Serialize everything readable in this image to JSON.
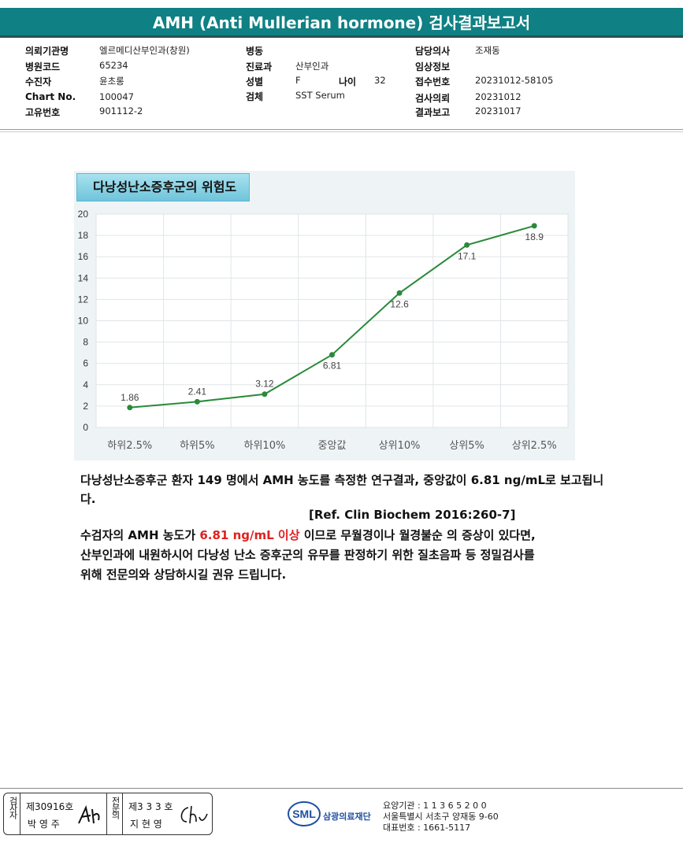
{
  "header": {
    "title": "AMH (Anti Mullerian hormone) 검사결과보고서"
  },
  "info": {
    "col1": [
      {
        "label": "의뢰기관명",
        "value": "엘르메디산부인과(창원)"
      },
      {
        "label": "병원코드",
        "value": "65234"
      },
      {
        "label": "수진자",
        "value": "윤초롱"
      },
      {
        "label": "Chart No.",
        "value": "100047"
      },
      {
        "label": "고유번호",
        "value": "901112-2"
      }
    ],
    "col2": [
      {
        "label": "병동",
        "value": ""
      },
      {
        "label": "진료과",
        "value": "산부인과"
      },
      {
        "label": "성별",
        "value": "F"
      },
      {
        "label": "검체",
        "value": "SST Serum"
      }
    ],
    "age": {
      "label": "나이",
      "value": "32"
    },
    "col3": [
      {
        "label": "담당의사",
        "value": "조재동"
      },
      {
        "label": "임상정보",
        "value": ""
      },
      {
        "label": "접수번호",
        "value": "20231012-58105"
      },
      {
        "label": "검사의뢰",
        "value": "20231012"
      },
      {
        "label": "결과보고",
        "value": "20231017"
      }
    ]
  },
  "chart_title": "다낭성난소증후군의 위험도",
  "chart_data": {
    "type": "line",
    "categories": [
      "하위2.5%",
      "하위5%",
      "하위10%",
      "중앙값",
      "상위10%",
      "상위5%",
      "상위2.5%"
    ],
    "values": [
      1.86,
      2.41,
      3.12,
      6.81,
      12.6,
      17.1,
      18.9
    ],
    "value_labels": [
      "1.86",
      "2.41",
      "3.12",
      "6.81",
      "12.6",
      "17.1",
      "18.9"
    ],
    "ylim": [
      0,
      20
    ],
    "yticks": [
      "0",
      "2",
      "4",
      "6",
      "8",
      "10",
      "12",
      "14",
      "16",
      "18",
      "20"
    ],
    "grid": true,
    "line_color": "#2a8a3a"
  },
  "text": {
    "p1": "다낭성난소증후군 환자 149 명에서 AMH 농도를 측정한 연구결과, 중앙값이 6.81 ng/mL로 보고됩니다.",
    "ref": "[Ref. Clin Biochem 2016:260-7]",
    "p2_a": "수검자의 AMH 농도가 ",
    "p2_red": "6.81 ng/mL 이상",
    "p2_b": " 이므로 무월경이나 월경불순 의 증상이 있다면,",
    "p3": "산부인과에 내원하시어 다낭성 난소 증후군의 유무를 판정하기 위한 질초음파 등 정밀검사를",
    "p4": "위해 전문의와 상담하시길 권유 드립니다."
  },
  "footer": {
    "inspector_label": "검사자",
    "inspector_no": "제30916호",
    "inspector_name": "박 영 주",
    "specialist_label": "전문의",
    "specialist_no": "제3 3 3 호",
    "specialist_name": "지 현 영",
    "logo_text": "SML",
    "org_name": "삼광의료재단",
    "inst_code": "요양기관 : 1 1 3 6 5 2 0 0",
    "address": "서울특별시 서초구 양재동 9-60",
    "phone": "대표번호 : 1661-5117",
    "brand_color": "#1f4fa0"
  }
}
